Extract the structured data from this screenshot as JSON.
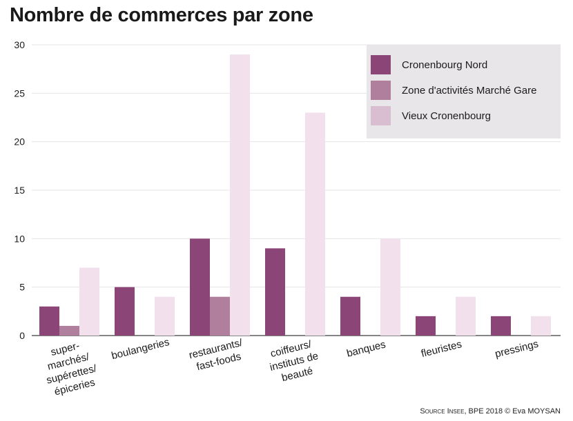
{
  "chart_data": {
    "type": "bar",
    "title": "Nombre de commerces par zone",
    "categories": [
      [
        "super-",
        "marchés/",
        "supérettes/",
        "épiceries"
      ],
      [
        "boulangeries"
      ],
      [
        "restaurants/",
        "fast-foods"
      ],
      [
        "coiffeurs/",
        "instituts de",
        "beauté"
      ],
      [
        "banques"
      ],
      [
        "fleuristes"
      ],
      [
        "pressings"
      ]
    ],
    "series": [
      {
        "name": "Cronenbourg Nord",
        "color": "#8b4577",
        "values": [
          3,
          5,
          10,
          9,
          4,
          2,
          2
        ]
      },
      {
        "name": "Zone d'activités Marché Gare",
        "color": "#b07f9e",
        "values": [
          1,
          0,
          4,
          0,
          0,
          0,
          0
        ]
      },
      {
        "name": "Vieux Cronenbourg",
        "color": "#f2e0ec",
        "values": [
          7,
          4,
          29,
          23,
          10,
          4,
          2
        ]
      }
    ],
    "yticks": [
      0,
      5,
      10,
      15,
      20,
      25,
      30
    ],
    "ylim": [
      0,
      30
    ],
    "grid": true,
    "legend_position": "top-right",
    "legend_swatch_colors": [
      "#8b4577",
      "#b07f9e",
      "#d9bdd0"
    ],
    "legend_background": "#e8e6e9",
    "source": {
      "prefix": "Source Insee",
      "rest": ", BPE 2018 © Eva MOYSAN"
    }
  }
}
